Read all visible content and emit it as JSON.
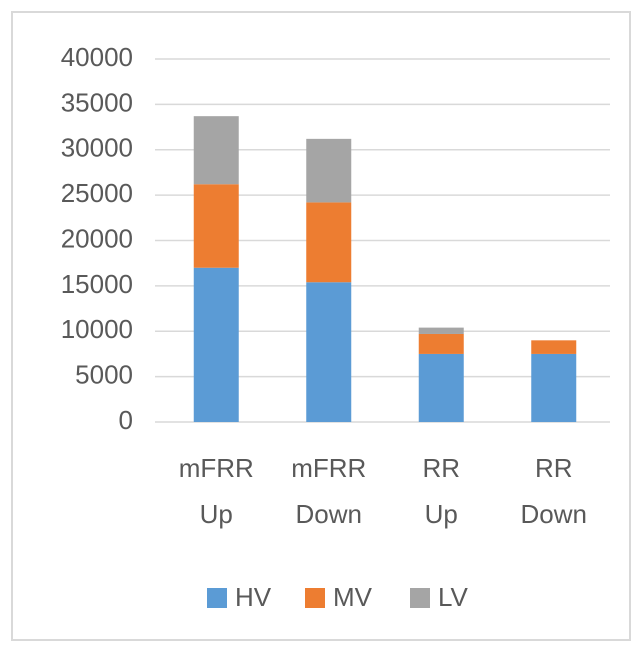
{
  "chart_data": {
    "type": "stacked_bar",
    "categories": [
      "mFRR Up",
      "mFRR Down",
      "RR Up",
      "RR Down"
    ],
    "series": [
      {
        "name": "HV",
        "color": "#5b9bd5",
        "values": [
          17000,
          15400,
          7500,
          7500
        ]
      },
      {
        "name": "MV",
        "color": "#ed7d31",
        "values": [
          9200,
          8800,
          2200,
          1500
        ]
      },
      {
        "name": "LV",
        "color": "#a5a5a5",
        "values": [
          7500,
          7000,
          700,
          0
        ]
      }
    ],
    "ylim": [
      0,
      40000
    ],
    "yticks": [
      0,
      5000,
      10000,
      15000,
      20000,
      25000,
      30000,
      35000,
      40000
    ],
    "grid": true,
    "legend": "bottom"
  }
}
